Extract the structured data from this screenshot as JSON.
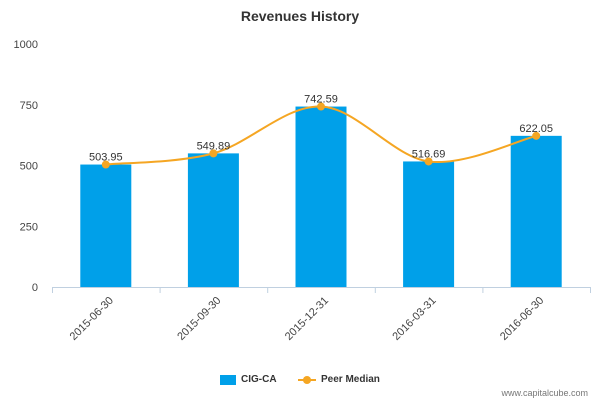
{
  "title": "Revenues History",
  "watermark": "www.capitalcube.com",
  "colors": {
    "bar": "#00a0e9",
    "line": "#f5a623",
    "axis": "#c0d0e0",
    "text": "#444444"
  },
  "legend": {
    "bar_series": "CIG-CA",
    "line_series": "Peer Median",
    "placement": "bottom-center"
  },
  "chart_data": {
    "type": "bar",
    "title": "Revenues History",
    "categories": [
      "2015-06-30",
      "2015-09-30",
      "2015-12-31",
      "2016-03-31",
      "2016-06-30"
    ],
    "series": [
      {
        "name": "CIG-CA",
        "type": "bar",
        "values": [
          503.95,
          549.89,
          742.59,
          516.69,
          622.05
        ]
      },
      {
        "name": "Peer Median",
        "type": "line",
        "values": [
          503.95,
          549.89,
          742.59,
          516.69,
          622.05
        ]
      }
    ],
    "data_labels": [
      "503.95",
      "549.89",
      "742.59",
      "516.69",
      "622.05"
    ],
    "ylim": [
      0,
      1000
    ],
    "yticks": [
      0,
      250,
      500,
      750,
      1000
    ],
    "xlabel": "",
    "ylabel": "",
    "grid": false
  }
}
